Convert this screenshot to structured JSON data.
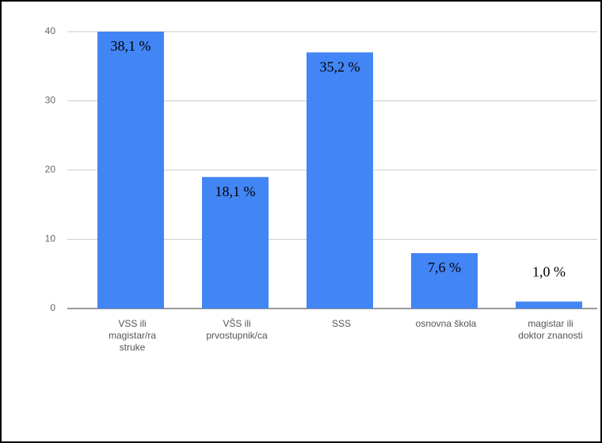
{
  "chart_data": {
    "type": "bar",
    "categories": [
      "VSS ili\nmagistar/ra\nstruke",
      "VŠS ili\nprvostupnik/ca",
      "SSS",
      "osnovna škola",
      "magistar ili\ndoktor znanosti"
    ],
    "values": [
      40,
      19,
      37,
      8,
      1
    ],
    "annotations": [
      "38,1 %",
      "18,1 %",
      "35,2 %",
      "7,6 %",
      "1,0 %"
    ],
    "color": "#4285f4",
    "ylim": [
      0,
      40
    ],
    "yticks": [
      0,
      10,
      20,
      30,
      40
    ],
    "grid": true
  }
}
